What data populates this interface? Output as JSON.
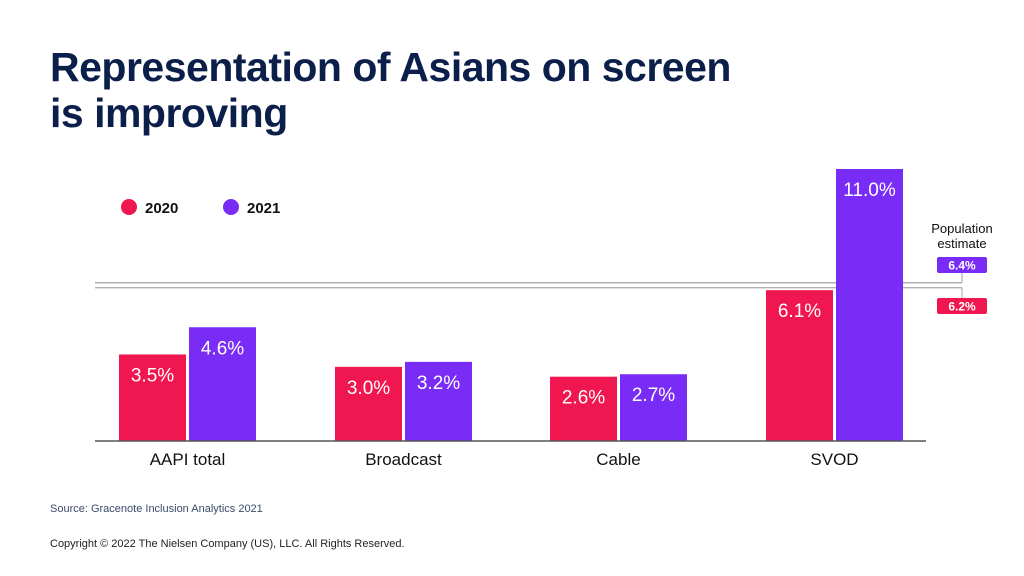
{
  "title_lines": [
    "Representation of Asians on screen",
    "is improving"
  ],
  "footer": {
    "source": "Source: Gracenote Inclusion Analytics 2021",
    "copyright": "Copyright © 2022 The Nielsen Company (US), LLC. All Rights Reserved."
  },
  "colors": {
    "2020": "#f0164f",
    "2021": "#7a2cf7",
    "title": "#0b1f4a",
    "axis": "#555555",
    "reference_line": "#b0b0b0"
  },
  "chart_data": {
    "type": "bar",
    "categories": [
      "AAPI total",
      "Broadcast",
      "Cable",
      "SVOD"
    ],
    "series": [
      {
        "name": "2020",
        "values": [
          3.5,
          3.0,
          2.6,
          6.1
        ],
        "labels": [
          "3.5%",
          "3.0%",
          "2.6%",
          "6.1%"
        ]
      },
      {
        "name": "2021",
        "values": [
          4.6,
          3.2,
          2.7,
          11.0
        ],
        "labels": [
          "4.6%",
          "3.2%",
          "2.7%",
          "11.0%"
        ]
      }
    ],
    "reference_lines": {
      "title": "Population estimate",
      "lines": [
        {
          "series": "2021",
          "value": 6.4,
          "label": "6.4%"
        },
        {
          "series": "2020",
          "value": 6.2,
          "label": "6.2%"
        }
      ]
    },
    "ylim": [
      0,
      11.0
    ],
    "legend_position": "top-left",
    "grid": false
  }
}
